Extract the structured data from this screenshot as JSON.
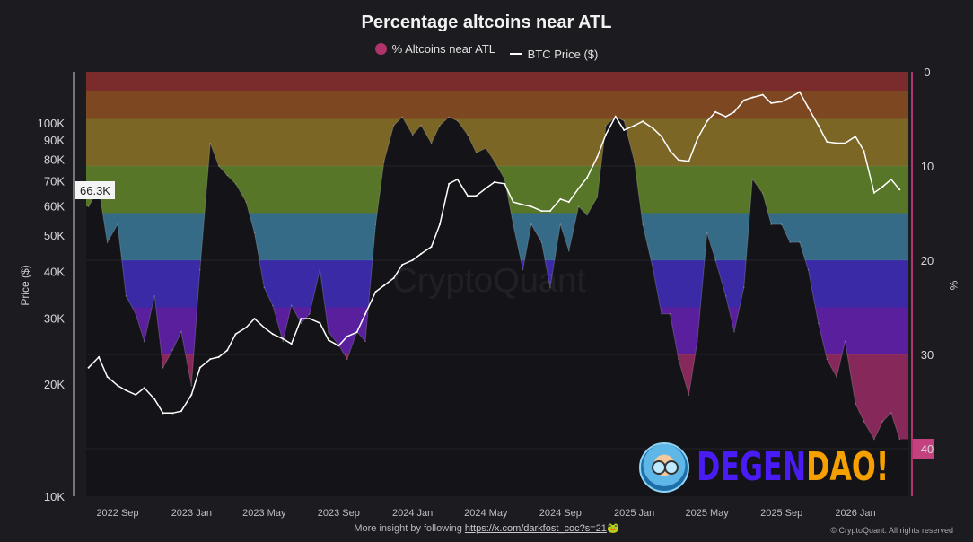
{
  "chart_data": {
    "type": "area",
    "title": "Percentage altcoins near ATL",
    "legend": [
      "% Altcoins near ATL",
      "BTC Price ($)"
    ],
    "legend_placement": "top-center",
    "ylabel_left": "Price ($)",
    "ylabel_right": "%",
    "y_left_scale": "log",
    "y_left_range": [
      10000,
      135000
    ],
    "y_left_ticks": [
      "10K",
      "20K",
      "30K",
      "40K",
      "50K",
      "60K",
      "70K",
      "80K",
      "90K",
      "100K"
    ],
    "y_left_tick_values": [
      10000,
      20000,
      30000,
      40000,
      50000,
      60000,
      70000,
      80000,
      90000,
      100000
    ],
    "y_right_range": [
      0,
      45
    ],
    "y_right_inverted": true,
    "y_right_ticks": [
      "0",
      "10",
      "20",
      "30",
      "40"
    ],
    "y_right_tick_values": [
      0,
      10,
      20,
      30,
      40
    ],
    "x_ticks": [
      "2022 Sep",
      "2023 Jan",
      "2023 May",
      "2023 Sep",
      "2024 Jan",
      "2024 May",
      "2024 Sep",
      "2025 Jan",
      "2025 May",
      "2025 Sep",
      "2026 Jan"
    ],
    "x_tick_dates": [
      "2022-09-01",
      "2023-01-01",
      "2023-05-01",
      "2023-09-01",
      "2024-01-01",
      "2024-05-01",
      "2024-09-01",
      "2025-01-01",
      "2025-05-01",
      "2025-09-01",
      "2026-01-01"
    ],
    "current_price_label": "66.3K",
    "watermark": "CryptoQuant",
    "grid": true,
    "bands": [
      {
        "from": 0,
        "to": 2,
        "color": "#7a2b2b"
      },
      {
        "from": 2,
        "to": 5,
        "color": "#7d4722"
      },
      {
        "from": 5,
        "to": 10,
        "color": "#7b6626"
      },
      {
        "from": 10,
        "to": 15,
        "color": "#577628"
      },
      {
        "from": 15,
        "to": 20,
        "color": "#366b88"
      },
      {
        "from": 20,
        "to": 25,
        "color": "#3a2aa5"
      },
      {
        "from": 25,
        "to": 30,
        "color": "#5a1f9c"
      },
      {
        "from": 30,
        "to": 45,
        "color": "#87285a"
      }
    ],
    "x": [
      "2022-07-15",
      "2022-08-01",
      "2022-08-15",
      "2022-09-01",
      "2022-09-15",
      "2022-10-01",
      "2022-10-15",
      "2022-11-01",
      "2022-11-15",
      "2022-12-01",
      "2022-12-15",
      "2023-01-01",
      "2023-01-15",
      "2023-02-01",
      "2023-02-15",
      "2023-03-01",
      "2023-03-15",
      "2023-04-01",
      "2023-04-15",
      "2023-05-01",
      "2023-05-15",
      "2023-06-01",
      "2023-06-15",
      "2023-07-01",
      "2023-07-15",
      "2023-08-01",
      "2023-08-15",
      "2023-09-01",
      "2023-09-15",
      "2023-10-01",
      "2023-10-15",
      "2023-11-01",
      "2023-11-15",
      "2023-12-01",
      "2023-12-15",
      "2024-01-01",
      "2024-01-15",
      "2024-02-01",
      "2024-02-15",
      "2024-03-01",
      "2024-03-15",
      "2024-04-01",
      "2024-04-15",
      "2024-05-01",
      "2024-05-15",
      "2024-06-01",
      "2024-06-15",
      "2024-07-01",
      "2024-07-15",
      "2024-08-01",
      "2024-08-15",
      "2024-09-01",
      "2024-09-15",
      "2024-10-01",
      "2024-10-15",
      "2024-11-01",
      "2024-11-15",
      "2024-12-01",
      "2024-12-15",
      "2025-01-01",
      "2025-01-15",
      "2025-02-01",
      "2025-02-15",
      "2025-03-01",
      "2025-03-15",
      "2025-04-01",
      "2025-04-15",
      "2025-05-01",
      "2025-05-15",
      "2025-06-01",
      "2025-06-15",
      "2025-07-01",
      "2025-07-15",
      "2025-08-01",
      "2025-08-15",
      "2025-09-01",
      "2025-09-15",
      "2025-10-01",
      "2025-10-15",
      "2025-11-01",
      "2025-11-15",
      "2025-12-01",
      "2025-12-15",
      "2026-01-01",
      "2026-01-15",
      "2026-02-01",
      "2026-02-15",
      "2026-03-01",
      "2026-03-15"
    ],
    "series": [
      {
        "name": "% Altcoins near ATL",
        "axis": "right",
        "color": "#b2336b",
        "values": [
          14.3,
          12.4,
          18.1,
          16.2,
          23.8,
          25.7,
          28.6,
          23.8,
          31.4,
          29.5,
          27.6,
          33.3,
          21,
          7.6,
          10,
          11,
          11.9,
          13.8,
          17.1,
          22.9,
          24.8,
          28.6,
          24.8,
          26.7,
          25.7,
          21,
          27.6,
          29,
          30.5,
          27.6,
          28.6,
          16.2,
          9.5,
          5.7,
          4.8,
          6.7,
          5.7,
          7.6,
          5.7,
          4.8,
          5.2,
          6.7,
          8.6,
          8.1,
          9.5,
          11.4,
          16.2,
          21,
          16.2,
          18.1,
          22.9,
          16.2,
          19,
          14.3,
          15.2,
          13.3,
          5.7,
          4.8,
          5.2,
          9.5,
          16.2,
          21,
          25.7,
          25.7,
          30.5,
          34.3,
          28.6,
          17.1,
          20,
          23.8,
          27.6,
          22.9,
          11.4,
          12.9,
          16.2,
          16.2,
          18.1,
          18.1,
          21,
          26.7,
          30.5,
          32.4,
          28.6,
          35.2,
          37.1,
          39,
          37.1,
          36.2,
          39
        ]
      },
      {
        "name": "BTC Price ($)",
        "axis": "left",
        "color": "#ffffff",
        "values": [
          22100,
          23600,
          20900,
          19800,
          19200,
          18700,
          19500,
          18200,
          16700,
          16700,
          16900,
          18700,
          22100,
          23300,
          23600,
          24600,
          27200,
          28300,
          29900,
          28300,
          27200,
          26400,
          25600,
          29900,
          29900,
          29100,
          26200,
          25300,
          26800,
          27500,
          30800,
          35300,
          36700,
          38400,
          41700,
          42900,
          44600,
          46600,
          53500,
          68700,
          70600,
          63800,
          63800,
          66800,
          69400,
          68700,
          61400,
          60400,
          59700,
          58100,
          58100,
          62500,
          61400,
          66800,
          71300,
          81100,
          93100,
          104000,
          95700,
          98400,
          101000,
          96700,
          92000,
          84200,
          79600,
          78900,
          90600,
          101000,
          107000,
          104000,
          107000,
          115000,
          117000,
          119000,
          113000,
          114000,
          117000,
          121000,
          110000,
          98400,
          89000,
          88300,
          88300,
          92000,
          84200,
          65000,
          67500,
          70600,
          66300
        ]
      }
    ]
  },
  "footer": {
    "prefix": "More insight by following ",
    "link": "https://x.com/darkfost_coc?s=21",
    "emoji": "🐸",
    "copyright": "© CryptoQuant. All rights reserved"
  },
  "logo": {
    "part1": "DEGEN",
    "part2": "DAO!"
  }
}
